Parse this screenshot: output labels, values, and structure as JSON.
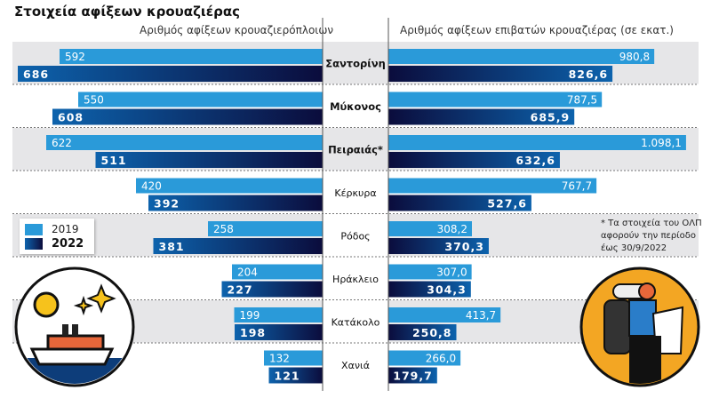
{
  "title": "Στοιχεία αφίξεων κρουαζιέρας",
  "colors": {
    "y2019": "#2a9ad9",
    "y2022_light": "#0d63ad",
    "y2022_dark": "#0b0c3c",
    "row_shade": "#e6e6e8"
  },
  "chart_data": {
    "type": "bar",
    "orientation": "horizontal-butterfly",
    "categories": [
      "Σαντορίνη",
      "Μύκονος",
      "Πειραιάς*",
      "Κέρκυρα",
      "Ρόδος",
      "Ηράκλειο",
      "Κατάκολο",
      "Χανιά"
    ],
    "bold_categories": [
      true,
      true,
      true,
      false,
      false,
      false,
      false,
      false
    ],
    "legend": [
      "2019",
      "2022"
    ],
    "left": {
      "title": "Αριθμός αφίξεων κρουαζιερόπλοιων",
      "series": [
        {
          "name": "2019",
          "values": [
            592,
            550,
            622,
            420,
            258,
            204,
            199,
            132
          ],
          "labels": [
            "592",
            "550",
            "622",
            "420",
            "258",
            "204",
            "199",
            "132"
          ]
        },
        {
          "name": "2022",
          "values": [
            686,
            608,
            511,
            392,
            381,
            227,
            198,
            121
          ],
          "labels": [
            "686",
            "608",
            "511",
            "392",
            "381",
            "227",
            "198",
            "121"
          ]
        }
      ]
    },
    "right": {
      "title": "Αριθμός αφίξεων επιβατών κρουαζιέρας (σε εκατ.)",
      "series": [
        {
          "name": "2019",
          "values": [
            980.8,
            787.5,
            1098.1,
            767.7,
            308.2,
            307.0,
            413.7,
            266.0
          ],
          "labels": [
            "980,8",
            "787,5",
            "1.098,1",
            "767,7",
            "308,2",
            "307,0",
            "413,7",
            "266,0"
          ]
        },
        {
          "name": "2022",
          "values": [
            826.6,
            685.9,
            632.6,
            527.6,
            370.3,
            304.3,
            250.8,
            179.7
          ],
          "labels": [
            "826,6",
            "685,9",
            "632,6",
            "527,6",
            "370,3",
            "304,3",
            "250,8",
            "179,7"
          ]
        }
      ]
    },
    "note": [
      "* Τα στοιχεία του ΟΛΠ",
      "αφορούν την περίοδο",
      "έως 30/9/2022"
    ]
  }
}
